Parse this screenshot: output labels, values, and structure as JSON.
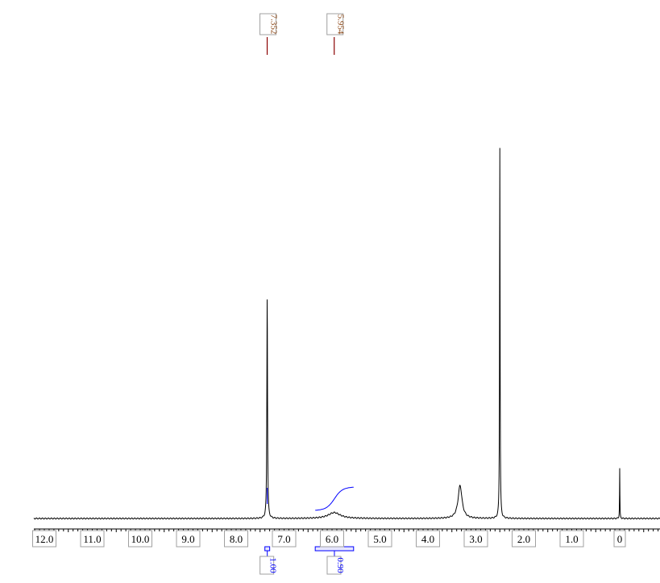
{
  "chart_data": {
    "type": "line",
    "title": "",
    "xlabel": "",
    "ylabel": "",
    "xlim": [
      12.4,
      -0.8
    ],
    "x_reversed": true,
    "grid": false,
    "x_ticks": [
      "12.0",
      "11.0",
      "10.0",
      "9.0",
      "8.0",
      "7.0",
      "6.0",
      "5.0",
      "4.0",
      "3.0",
      "2.0",
      "1.0",
      "0"
    ],
    "x_tick_values": [
      12,
      11,
      10,
      9,
      8,
      7,
      6,
      5,
      4,
      3,
      2,
      1,
      0
    ],
    "peaks": [
      {
        "ppm": 7.352,
        "intensity": 60,
        "width": 0.008
      },
      {
        "ppm": 5.954,
        "intensity": 1.6,
        "width": 0.15
      },
      {
        "ppm": 3.33,
        "intensity": 8.9,
        "width": 0.05
      },
      {
        "ppm": 2.5,
        "intensity": 100,
        "width": 0.006
      },
      {
        "ppm": 0.0,
        "intensity": 13.5,
        "width": 0.004
      }
    ],
    "peak_labels": [
      {
        "ppm": 7.352,
        "text": "7.352"
      },
      {
        "ppm": 5.954,
        "text": "5.954"
      }
    ],
    "integrals": [
      {
        "from": 7.4,
        "to": 7.3,
        "value": "1.00"
      },
      {
        "from": 6.35,
        "to": 5.55,
        "value": "0.90"
      }
    ],
    "colors": {
      "spectrum": "#000000",
      "peak_label_line": "#8b0000",
      "integral": "#0000ff",
      "label_box": "#a0a0a0"
    }
  }
}
